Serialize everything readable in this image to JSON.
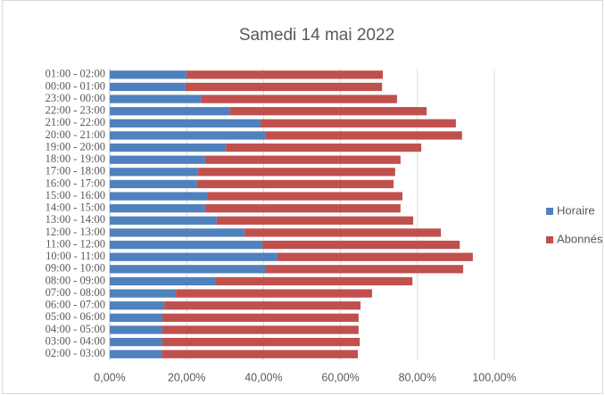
{
  "chart_data": {
    "type": "stacked-bar-horizontal",
    "title": "Samedi 14 mai 2022",
    "categories": [
      "01:00 - 02:00",
      "00:00 - 01:00",
      "23:00 - 00:00",
      "22:00 - 23:00",
      "21:00 - 22:00",
      "20:00 - 21:00",
      "19:00 - 20:00",
      "18:00 - 19:00",
      "17:00 - 18:00",
      "16:00 - 17:00",
      "15:00 - 16:00",
      "14:00 - 15:00",
      "13:00 - 14:00",
      "12:00 - 13:00",
      "11:00 - 12:00",
      "10:00 - 11:00",
      "09:00 - 10:00",
      "08:00 - 09:00",
      "07:00 - 08:00",
      "06:00 - 07:00",
      "05:00 - 06:00",
      "04:00 - 05:00",
      "03:00 - 04:00",
      "02:00 - 03:00"
    ],
    "series": [
      {
        "name": "Horaire",
        "color": "#4f81bd",
        "values": [
          20.0,
          19.7,
          23.7,
          31.3,
          39.2,
          40.4,
          30.2,
          24.8,
          23.0,
          22.7,
          25.3,
          24.8,
          27.8,
          35.0,
          39.7,
          43.6,
          40.6,
          27.6,
          17.2,
          14.2,
          13.7,
          13.7,
          13.7,
          13.5
        ]
      },
      {
        "name": "Abonnés",
        "color": "#c0504d",
        "values": [
          51.0,
          51.1,
          51.0,
          51.1,
          50.8,
          51.2,
          50.8,
          50.8,
          51.2,
          51.1,
          50.8,
          50.8,
          51.1,
          51.1,
          51.3,
          50.8,
          51.3,
          51.1,
          51.0,
          51.0,
          51.0,
          51.0,
          51.3,
          51.0
        ]
      }
    ],
    "xlim": [
      0,
      100
    ],
    "xticks": [
      {
        "value": 0,
        "label": "0,00%"
      },
      {
        "value": 20,
        "label": "20,00%"
      },
      {
        "value": 40,
        "label": "40,00%"
      },
      {
        "value": 60,
        "label": "60,00%"
      },
      {
        "value": 80,
        "label": "80,00%"
      },
      {
        "value": 100,
        "label": "100,00%"
      }
    ],
    "grid": true,
    "legend": "right"
  }
}
